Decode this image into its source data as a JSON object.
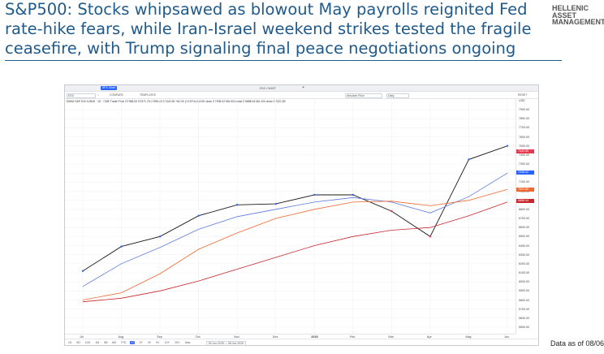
{
  "headline": {
    "line1": "S&P500: Stocks whipsawed as blowout May payrolls reignited Fed",
    "line2": "rate-hike fears, while Iran-Israel weekend strikes tested the fragile",
    "line3": "ceasefire, with Trump signaling final peace negotiations ongoing"
  },
  "logo": {
    "line1": "HELLENIC",
    "line2": "ASSET",
    "line3": "MANAGEMENT"
  },
  "footnote": "Data as of 08/06",
  "tradingview": {
    "tabs": {
      "active": "SPX Chart",
      "second": "ES1! CHART",
      "add": "+"
    },
    "toolbar": {
      "symbol": "ES1!",
      "compare": "COMPARE",
      "templates": "TEMPLATES",
      "price_type": "Absolute Price",
      "interval": "Daily",
      "reset": "RESET"
    },
    "legend": "EMINI S&P 500 JUN26 · 1D · CME  Trade Price  O7358.00 H7471.75 L7355.00 C7442.50 +62.00 (+0.57%)   MA 50 close 0  7208.02   MA 200 close 0  6888.44   MA 100 close 0  7021.80",
    "y_axis": {
      "currency": "USD",
      "ticks": [
        "7900.00",
        "7800.00",
        "7700.00",
        "7600.00",
        "7500.00",
        "7400.00",
        "7300.00",
        "7200.00",
        "7100.00",
        "7000.00",
        "6900.00",
        "6800.00",
        "6700.00",
        "6600.00",
        "6500.00",
        "6400.00",
        "6300.00",
        "6200.00",
        "6100.00",
        "6000.00",
        "5900.00",
        "5800.00",
        "5700.00",
        "5600.00",
        "5500.00"
      ],
      "tags": [
        {
          "label": "7442.50",
          "color": "#e53950",
          "value": 7442.5
        },
        {
          "label": "7208.02",
          "color": "#2962ff",
          "value": 7208.02
        },
        {
          "label": "7021.80",
          "color": "#f0672f",
          "value": 7021.8
        },
        {
          "label": "6888.44",
          "color": "#c8262b",
          "value": 6888.44
        }
      ]
    },
    "x_axis": {
      "ticks": [
        "Jul",
        "Aug",
        "Sep",
        "Oct",
        "Nov",
        "Dec",
        "2026",
        "Feb",
        "Mar",
        "Apr",
        "May",
        "Jun"
      ]
    },
    "ranges": [
      "1D",
      "5D",
      "10D",
      "1M",
      "3M",
      "6M",
      "YTD",
      "1Y",
      "2Y",
      "3Y",
      "5Y",
      "10Y",
      "20Y",
      "Max"
    ],
    "selected_range": "1Y",
    "date_range": "09-Jun-2025 — 08-Jun-2026"
  },
  "chart_data": {
    "type": "line",
    "title": "EMINI S&P 500 JUN26",
    "ylim": [
      5500,
      7900
    ],
    "x": [
      "Jul",
      "Aug",
      "Sep",
      "Oct",
      "Nov",
      "Dec",
      "2026",
      "Feb",
      "Mar",
      "Apr",
      "May",
      "Jun"
    ],
    "series": [
      {
        "name": "Trade Price",
        "color": "#1a1a1a",
        "values": [
          6120,
          6390,
          6500,
          6730,
          6850,
          6860,
          6960,
          6960,
          6780,
          6500,
          7350,
          7500
        ]
      },
      {
        "name": "MA 50 close 0",
        "color": "#5b7be0",
        "values": [
          5950,
          6200,
          6380,
          6580,
          6720,
          6800,
          6880,
          6930,
          6880,
          6760,
          6940,
          7200
        ]
      },
      {
        "name": "MA 100 close 0",
        "color": "#f0672f",
        "values": [
          5800,
          5880,
          6090,
          6360,
          6540,
          6700,
          6800,
          6880,
          6890,
          6840,
          6900,
          7020
        ]
      },
      {
        "name": "MA 200 close 0",
        "color": "#c8262b",
        "values": [
          5780,
          5820,
          5900,
          6010,
          6140,
          6270,
          6400,
          6500,
          6570,
          6600,
          6730,
          6880
        ]
      }
    ]
  }
}
